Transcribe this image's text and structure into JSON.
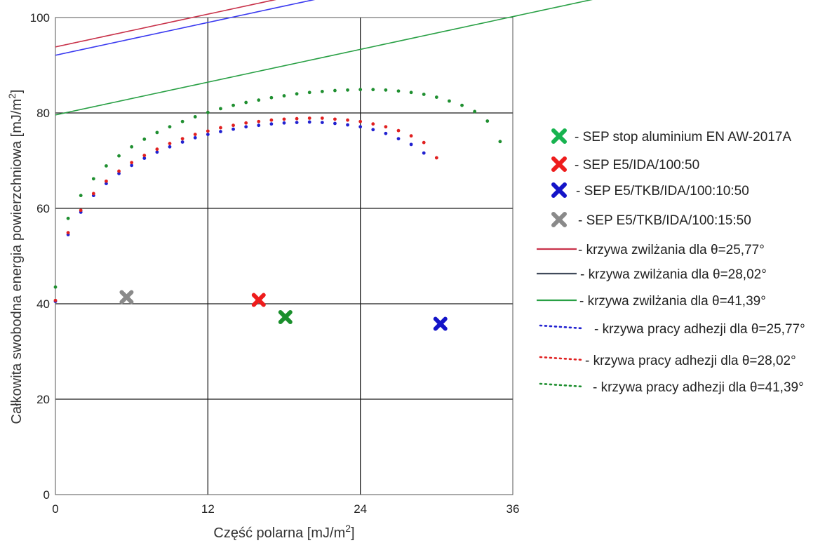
{
  "chart_data": {
    "type": "scatter",
    "xlabel": "Część polarna [mJ/m",
    "xlabel_sup": "2",
    "xlabel_end": "]",
    "ylabel": "Całkowita swobodna energia powierzchniowa [mJ/m",
    "ylabel_sup": "2",
    "ylabel_end": "]",
    "xlim": [
      0,
      36
    ],
    "ylim": [
      0,
      100
    ],
    "x_ticks": [
      0,
      12,
      24,
      36
    ],
    "y_ticks": [
      0,
      20,
      40,
      60,
      80,
      100
    ],
    "grid": true,
    "legend_position": "right",
    "markers": [
      {
        "label": "- SEP stop aluminium EN AW-2017A",
        "x": 18.1,
        "y": 37.2,
        "color": "#1a8f2c"
      },
      {
        "label": "- SEP E5/IDA/100:50",
        "x": 16.0,
        "y": 40.8,
        "color": "#ee1c1c"
      },
      {
        "label": "- SEP E5/TKB/IDA/100:10:50",
        "x": 30.3,
        "y": 35.8,
        "color": "#1414c8"
      },
      {
        "label": "- SEP E5/TKB/IDA/100:15:50",
        "x": 5.6,
        "y": 41.4,
        "color": "#8a8a8a"
      }
    ],
    "legend_marker_colors": [
      "#17b34f",
      "#ee1c1c",
      "#1414c8",
      "#8a8a8a"
    ],
    "wetting_curves": [
      {
        "label": "- krzywa zwilżania dla θ=25,77°",
        "theta": 25.77,
        "color": "#c8324a",
        "legend_color": "#c8324a"
      },
      {
        "label": "- krzywa zwilżania dla θ=28,02°",
        "theta": 28.02,
        "color": "#3a3af0",
        "legend_color": "#404a5a"
      },
      {
        "label": "- krzywa zwilżania dla θ=41,39°",
        "theta": 41.39,
        "color": "#29a045",
        "legend_color": "#29a045"
      }
    ],
    "adhesion_curves": [
      {
        "label": "- krzywa pracy adhezji dla θ=25,77°",
        "theta": 25.77,
        "color": "#2121d0",
        "legend_color": "#2121d0",
        "points": [
          [
            0,
            40.5
          ],
          [
            1,
            54.5
          ],
          [
            2,
            59.2
          ],
          [
            3,
            62.7
          ],
          [
            4,
            65.2
          ],
          [
            5,
            67.3
          ],
          [
            6,
            69.0
          ],
          [
            7,
            70.5
          ],
          [
            8,
            71.8
          ],
          [
            9,
            72.9
          ],
          [
            10,
            73.9
          ],
          [
            11,
            74.8
          ],
          [
            12,
            75.5
          ],
          [
            13,
            76.1
          ],
          [
            14,
            76.6
          ],
          [
            15,
            77.1
          ],
          [
            16,
            77.4
          ],
          [
            17,
            77.7
          ],
          [
            18,
            77.9
          ],
          [
            19,
            78.0
          ],
          [
            20,
            78.1
          ],
          [
            21,
            78.0
          ],
          [
            22,
            77.8
          ],
          [
            23,
            77.5
          ],
          [
            24,
            77.1
          ],
          [
            25,
            76.5
          ],
          [
            26,
            75.7
          ],
          [
            27,
            74.6
          ],
          [
            28,
            73.4
          ],
          [
            29,
            71.6
          ]
        ]
      },
      {
        "label": "- krzywa pracy adhezji dla θ=28,02°",
        "theta": 28.02,
        "color": "#e02020",
        "legend_color": "#e02020",
        "points": [
          [
            0,
            40.7
          ],
          [
            1,
            54.9
          ],
          [
            2,
            59.6
          ],
          [
            3,
            63.1
          ],
          [
            4,
            65.7
          ],
          [
            5,
            67.8
          ],
          [
            6,
            69.6
          ],
          [
            7,
            71.1
          ],
          [
            8,
            72.4
          ],
          [
            9,
            73.6
          ],
          [
            10,
            74.6
          ],
          [
            11,
            75.5
          ],
          [
            12,
            76.2
          ],
          [
            13,
            76.9
          ],
          [
            14,
            77.4
          ],
          [
            15,
            77.9
          ],
          [
            16,
            78.2
          ],
          [
            17,
            78.5
          ],
          [
            18,
            78.7
          ],
          [
            19,
            78.8
          ],
          [
            20,
            78.9
          ],
          [
            21,
            78.9
          ],
          [
            22,
            78.7
          ],
          [
            23,
            78.5
          ],
          [
            24,
            78.2
          ],
          [
            25,
            77.7
          ],
          [
            26,
            77.1
          ],
          [
            27,
            76.3
          ],
          [
            28,
            75.2
          ],
          [
            29,
            73.8
          ],
          [
            30,
            70.6
          ]
        ]
      },
      {
        "label": "- krzywa pracy adhezji dla θ=41,39°",
        "theta": 41.39,
        "color": "#1f8f30",
        "legend_color": "#1f8f30",
        "points": [
          [
            0,
            43.5
          ],
          [
            1,
            57.9
          ],
          [
            2,
            62.7
          ],
          [
            3,
            66.2
          ],
          [
            4,
            68.9
          ],
          [
            5,
            71.0
          ],
          [
            6,
            72.9
          ],
          [
            7,
            74.5
          ],
          [
            8,
            75.9
          ],
          [
            9,
            77.1
          ],
          [
            10,
            78.2
          ],
          [
            11,
            79.2
          ],
          [
            12,
            80.1
          ],
          [
            13,
            80.9
          ],
          [
            14,
            81.6
          ],
          [
            15,
            82.2
          ],
          [
            16,
            82.7
          ],
          [
            17,
            83.2
          ],
          [
            18,
            83.6
          ],
          [
            19,
            84.0
          ],
          [
            20,
            84.3
          ],
          [
            21,
            84.5
          ],
          [
            22,
            84.7
          ],
          [
            23,
            84.8
          ],
          [
            24,
            84.9
          ],
          [
            25,
            84.9
          ],
          [
            26,
            84.8
          ],
          [
            27,
            84.6
          ],
          [
            28,
            84.3
          ],
          [
            29,
            83.9
          ],
          [
            30,
            83.3
          ],
          [
            31,
            82.5
          ],
          [
            32,
            81.6
          ],
          [
            33,
            80.3
          ],
          [
            34,
            78.3
          ],
          [
            35,
            74.0
          ]
        ]
      }
    ]
  }
}
